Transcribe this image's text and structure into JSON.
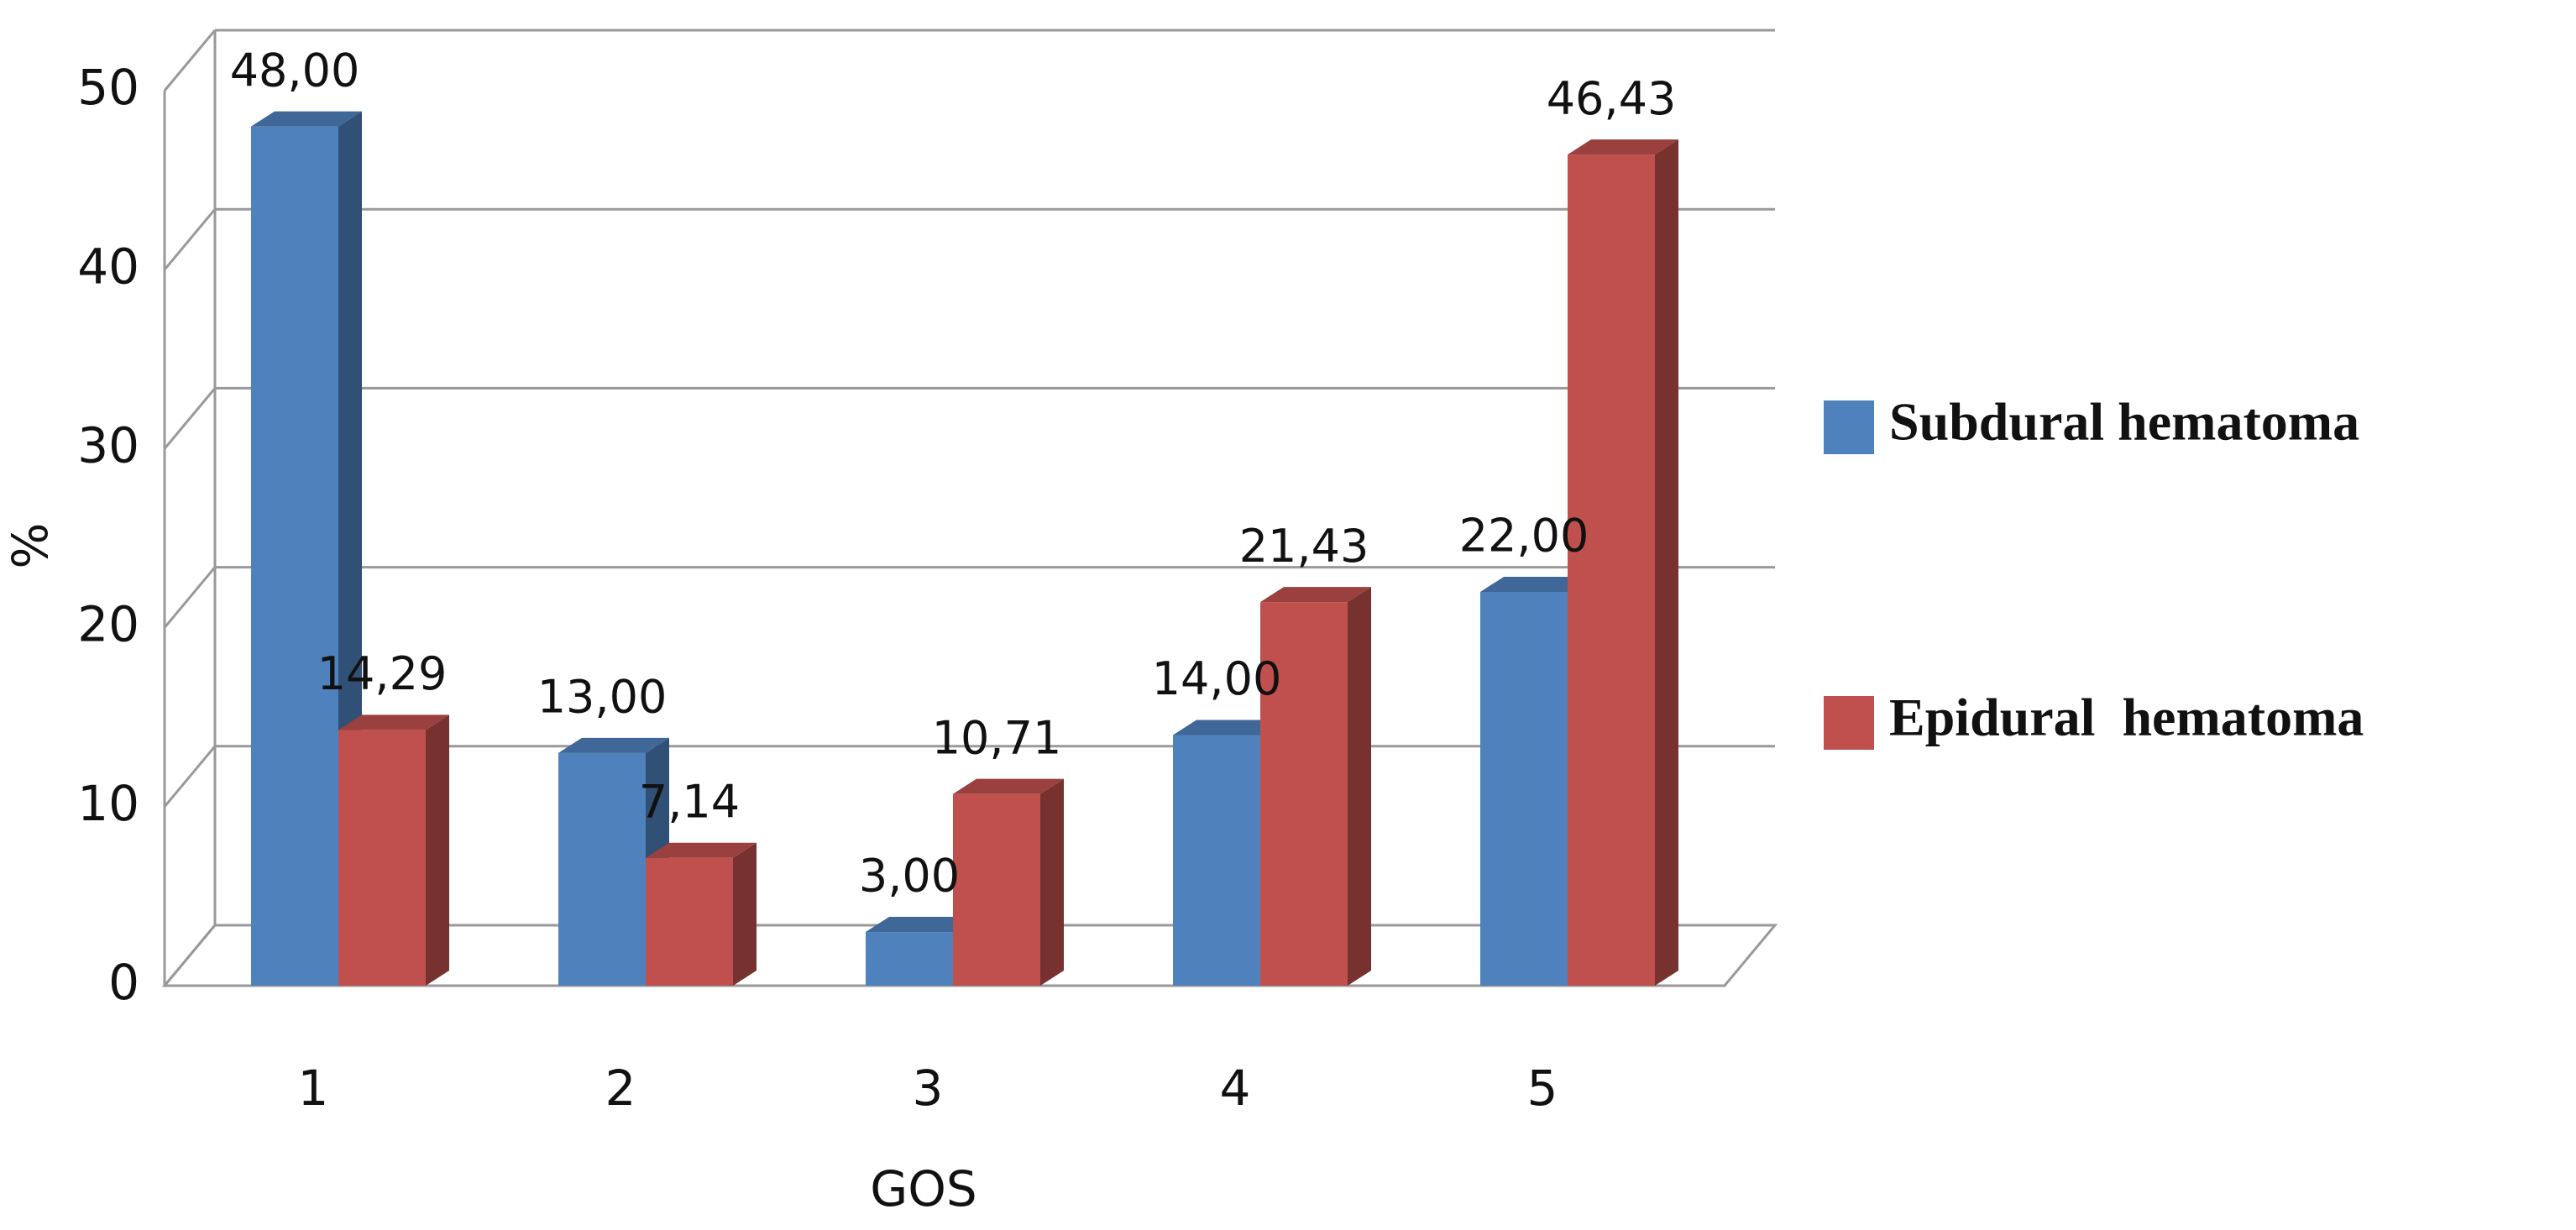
{
  "chart_data": {
    "type": "bar3d",
    "x_label": "GOS",
    "y_label": "%",
    "categories": [
      "1",
      "2",
      "3",
      "4",
      "5"
    ],
    "series": [
      {
        "name": "Subdural hematoma",
        "color": "#4f81bd",
        "values": [
          48,
          13,
          3,
          14,
          22
        ],
        "value_labels": [
          "48,00",
          "13,00",
          "3,00",
          "14,00",
          "22,00"
        ]
      },
      {
        "name": "Epidural  hematoma",
        "color": "#c0504d",
        "values": [
          14.29,
          7.14,
          10.71,
          21.43,
          46.43
        ],
        "value_labels": [
          "14,29",
          "7,14",
          "10,71",
          "21,43",
          "46,43"
        ]
      }
    ],
    "ylim": [
      0,
      50
    ],
    "yticks": [
      0,
      10,
      20,
      30,
      40,
      50
    ],
    "grid": true,
    "legend": "right"
  }
}
